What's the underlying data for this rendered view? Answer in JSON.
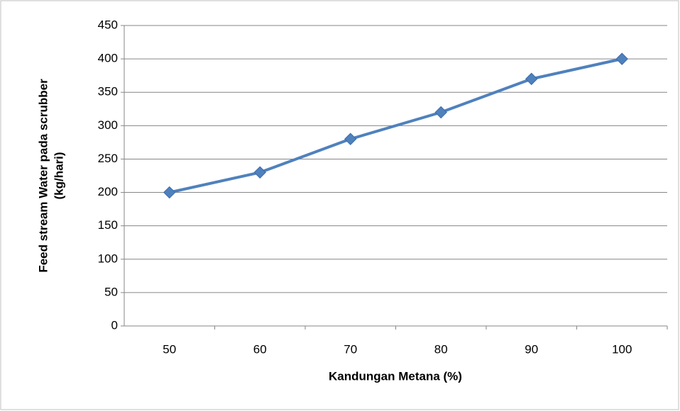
{
  "chart_data": {
    "type": "line",
    "categories": [
      "50",
      "60",
      "70",
      "80",
      "90",
      "100"
    ],
    "series": [
      {
        "name": "Feed stream Water",
        "color": "#4f81bd",
        "values": [
          200,
          230,
          280,
          320,
          370,
          400
        ]
      }
    ],
    "xlabel": "Kandungan Metana (%)",
    "ylabel": [
      "Feed stream Water pada scrubber",
      "(kg/hari)"
    ],
    "ylim": [
      0,
      450
    ],
    "yticks": [
      0,
      50,
      100,
      150,
      200,
      250,
      300,
      350,
      400,
      450
    ],
    "grid": true
  }
}
